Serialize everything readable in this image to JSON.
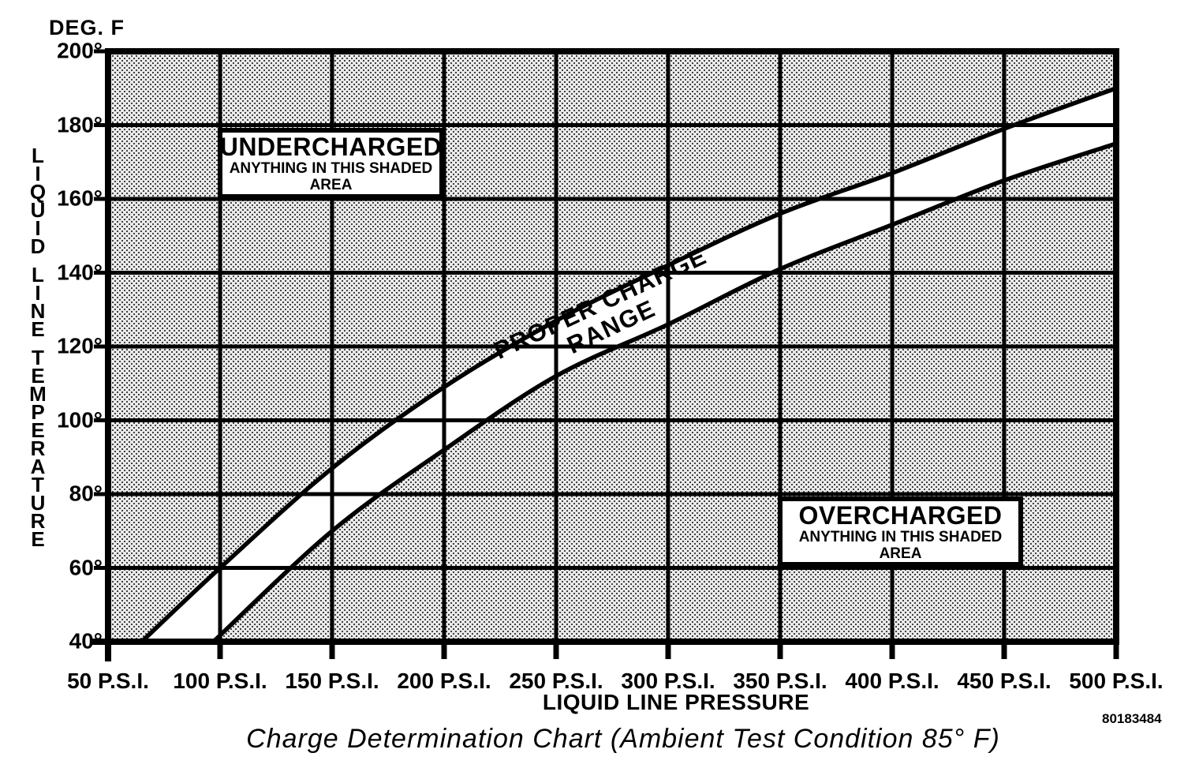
{
  "caption": "Charge Determination Chart (Ambient Test Condition 85° F)",
  "part_number": "80183484",
  "colors": {
    "ink": "#000000",
    "shade_bg": "#eaeaea",
    "shade_dot": "#3d3d3d",
    "band_fill": "#ffffff"
  },
  "chart_data": {
    "type": "area",
    "title": "Charge Determination Chart (Ambient Test Condition 85° F)",
    "x_label": "LIQUID LINE PRESSURE",
    "y_label": "LIQUID LINE TEMPERATURE",
    "y_unit_label": "DEG. F",
    "x_range": [
      50,
      500
    ],
    "y_range": [
      40,
      200
    ],
    "x_tick_values": [
      50,
      100,
      150,
      200,
      250,
      300,
      350,
      400,
      450,
      500
    ],
    "x_tick_labels": [
      "50 P.S.I.",
      "100 P.S.I.",
      "150 P.S.I.",
      "200 P.S.I.",
      "250 P.S.I.",
      "300 P.S.I.",
      "350 P.S.I.",
      "400 P.S.I.",
      "450 P.S.I.",
      "500 P.S.I."
    ],
    "y_tick_values": [
      200,
      180,
      160,
      140,
      120,
      100,
      80,
      60,
      40
    ],
    "y_tick_labels": [
      "200°",
      "180°",
      "160°",
      "140°",
      "120°",
      "100°",
      "80°",
      "60°",
      "40°"
    ],
    "grid": true,
    "legend_position": "none",
    "series": [
      {
        "name": "upper_boundary_undercharged_limit",
        "points": [
          [
            65,
            40
          ],
          [
            100,
            60
          ],
          [
            150,
            87
          ],
          [
            200,
            109
          ],
          [
            250,
            127
          ],
          [
            300,
            142
          ],
          [
            350,
            156
          ],
          [
            400,
            167
          ],
          [
            450,
            179
          ],
          [
            500,
            190
          ]
        ]
      },
      {
        "name": "lower_boundary_overcharged_limit",
        "points": [
          [
            97,
            40
          ],
          [
            150,
            70
          ],
          [
            200,
            92
          ],
          [
            250,
            112
          ],
          [
            300,
            126
          ],
          [
            350,
            141
          ],
          [
            400,
            153
          ],
          [
            450,
            165
          ],
          [
            500,
            175
          ]
        ]
      }
    ],
    "annotations": {
      "undercharged": {
        "title": "UNDERCHARGED",
        "line2": "ANYTHING IN THIS SHADED",
        "line3": "AREA"
      },
      "proper_range": {
        "line1": "PROPER CHARGE",
        "line2": "RANGE"
      },
      "overcharged": {
        "title": "OVERCHARGED",
        "line2": "ANYTHING IN THIS SHADED",
        "line3": "AREA"
      }
    }
  }
}
